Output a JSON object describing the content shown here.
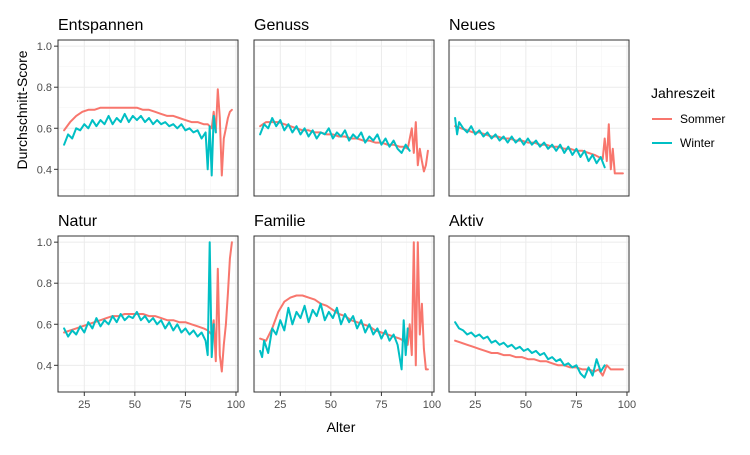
{
  "chart_data": {
    "type": "line",
    "ylabel": "Durchschnitt-Score",
    "xlabel": "Alter",
    "xlim": [
      12,
      101
    ],
    "ylim": [
      0.27,
      1.03
    ],
    "xticks": [
      25,
      50,
      75,
      100
    ],
    "yticks": [
      0.4,
      0.6,
      0.8,
      1.0
    ],
    "ytick_labels": [
      "0.4",
      "0.6",
      "0.8",
      "1.0"
    ],
    "grid": true,
    "legend": {
      "title": "Jahreszeit",
      "position": "right",
      "entries": [
        {
          "label": "Sommer",
          "color": "#F8766D"
        },
        {
          "label": "Winter",
          "color": "#00BFC4"
        }
      ]
    },
    "facets": [
      {
        "title": "Entspannen",
        "series": [
          {
            "name": "Sommer",
            "color": "#F8766D",
            "x": [
              15,
              18,
              21,
              24,
              27,
              30,
              33,
              36,
              39,
              42,
              45,
              48,
              51,
              54,
              57,
              60,
              63,
              66,
              69,
              72,
              75,
              78,
              81,
              84,
              86,
              88,
              89,
              90,
              91,
              92,
              93,
              94,
              95,
              96,
              97,
              98
            ],
            "y": [
              0.59,
              0.63,
              0.66,
              0.68,
              0.69,
              0.69,
              0.7,
              0.7,
              0.7,
              0.7,
              0.7,
              0.7,
              0.7,
              0.69,
              0.69,
              0.68,
              0.67,
              0.66,
              0.66,
              0.65,
              0.64,
              0.63,
              0.63,
              0.62,
              0.62,
              0.6,
              0.68,
              0.58,
              0.79,
              0.65,
              0.37,
              0.55,
              0.6,
              0.65,
              0.68,
              0.69
            ]
          },
          {
            "name": "Winter",
            "color": "#00BFC4",
            "x": [
              15,
              17,
              19,
              21,
              23,
              25,
              27,
              29,
              31,
              33,
              35,
              37,
              39,
              41,
              43,
              45,
              47,
              49,
              51,
              53,
              55,
              57,
              59,
              61,
              63,
              65,
              67,
              69,
              71,
              73,
              75,
              77,
              79,
              81,
              83,
              85,
              86,
              87,
              88,
              89,
              90
            ],
            "y": [
              0.52,
              0.57,
              0.55,
              0.6,
              0.59,
              0.62,
              0.6,
              0.64,
              0.61,
              0.64,
              0.62,
              0.66,
              0.62,
              0.65,
              0.63,
              0.67,
              0.63,
              0.66,
              0.64,
              0.66,
              0.63,
              0.65,
              0.62,
              0.64,
              0.62,
              0.63,
              0.61,
              0.62,
              0.6,
              0.62,
              0.59,
              0.6,
              0.58,
              0.59,
              0.55,
              0.58,
              0.4,
              0.61,
              0.37,
              0.66,
              0.58
            ]
          }
        ]
      },
      {
        "title": "Genuss",
        "series": [
          {
            "name": "Sommer",
            "color": "#F8766D",
            "x": [
              15,
              18,
              21,
              24,
              27,
              30,
              33,
              36,
              39,
              42,
              45,
              48,
              51,
              54,
              57,
              60,
              63,
              66,
              69,
              72,
              75,
              78,
              81,
              84,
              86,
              88,
              90,
              91,
              92,
              93,
              94,
              95,
              96,
              97,
              98
            ],
            "y": [
              0.61,
              0.63,
              0.63,
              0.63,
              0.62,
              0.61,
              0.6,
              0.59,
              0.59,
              0.58,
              0.58,
              0.57,
              0.57,
              0.56,
              0.56,
              0.55,
              0.55,
              0.54,
              0.54,
              0.53,
              0.53,
              0.52,
              0.52,
              0.51,
              0.51,
              0.5,
              0.6,
              0.48,
              0.63,
              0.42,
              0.5,
              0.44,
              0.39,
              0.42,
              0.49
            ]
          },
          {
            "name": "Winter",
            "color": "#00BFC4",
            "x": [
              15,
              17,
              19,
              21,
              23,
              25,
              27,
              29,
              31,
              33,
              35,
              37,
              39,
              41,
              43,
              45,
              47,
              49,
              51,
              53,
              55,
              57,
              59,
              61,
              63,
              65,
              67,
              69,
              71,
              73,
              75,
              77,
              79,
              81,
              83,
              85,
              87,
              89
            ],
            "y": [
              0.57,
              0.62,
              0.6,
              0.65,
              0.61,
              0.64,
              0.59,
              0.62,
              0.58,
              0.61,
              0.57,
              0.6,
              0.56,
              0.59,
              0.55,
              0.58,
              0.57,
              0.6,
              0.55,
              0.58,
              0.56,
              0.59,
              0.54,
              0.57,
              0.55,
              0.58,
              0.53,
              0.56,
              0.54,
              0.57,
              0.52,
              0.55,
              0.51,
              0.54,
              0.5,
              0.48,
              0.52,
              0.49
            ]
          }
        ]
      },
      {
        "title": "Neues",
        "series": [
          {
            "name": "Sommer",
            "color": "#F8766D",
            "x": [
              15,
              18,
              21,
              24,
              27,
              30,
              33,
              36,
              39,
              42,
              45,
              48,
              51,
              54,
              57,
              60,
              63,
              66,
              69,
              72,
              75,
              78,
              81,
              84,
              86,
              88,
              89,
              90,
              91,
              92,
              93,
              94,
              95,
              96,
              97,
              98
            ],
            "y": [
              0.61,
              0.6,
              0.59,
              0.58,
              0.58,
              0.57,
              0.56,
              0.56,
              0.55,
              0.55,
              0.54,
              0.54,
              0.53,
              0.53,
              0.52,
              0.52,
              0.51,
              0.51,
              0.5,
              0.5,
              0.49,
              0.49,
              0.48,
              0.47,
              0.46,
              0.45,
              0.55,
              0.44,
              0.62,
              0.4,
              0.5,
              0.38,
              0.38,
              0.38,
              0.38,
              0.38
            ]
          },
          {
            "name": "Winter",
            "color": "#00BFC4",
            "x": [
              15,
              16,
              17,
              19,
              21,
              23,
              25,
              27,
              29,
              31,
              33,
              35,
              37,
              39,
              41,
              43,
              45,
              47,
              49,
              51,
              53,
              55,
              57,
              59,
              61,
              63,
              65,
              67,
              69,
              71,
              73,
              75,
              77,
              79,
              81,
              83,
              85,
              87,
              89
            ],
            "y": [
              0.65,
              0.57,
              0.63,
              0.6,
              0.58,
              0.61,
              0.57,
              0.59,
              0.56,
              0.58,
              0.55,
              0.57,
              0.54,
              0.56,
              0.53,
              0.56,
              0.53,
              0.55,
              0.52,
              0.55,
              0.52,
              0.54,
              0.51,
              0.53,
              0.5,
              0.52,
              0.49,
              0.52,
              0.48,
              0.51,
              0.47,
              0.5,
              0.46,
              0.49,
              0.44,
              0.47,
              0.43,
              0.46,
              0.41
            ]
          }
        ]
      },
      {
        "title": "Natur",
        "series": [
          {
            "name": "Sommer",
            "color": "#F8766D",
            "x": [
              15,
              18,
              21,
              24,
              27,
              30,
              33,
              36,
              39,
              42,
              45,
              48,
              51,
              54,
              57,
              60,
              63,
              66,
              69,
              72,
              75,
              78,
              81,
              84,
              86,
              88,
              89,
              90,
              91,
              92,
              93,
              94,
              95,
              96,
              97,
              98
            ],
            "y": [
              0.56,
              0.57,
              0.58,
              0.59,
              0.6,
              0.61,
              0.62,
              0.63,
              0.64,
              0.64,
              0.65,
              0.65,
              0.65,
              0.65,
              0.64,
              0.64,
              0.63,
              0.62,
              0.62,
              0.61,
              0.61,
              0.6,
              0.59,
              0.58,
              0.57,
              0.55,
              0.62,
              0.42,
              0.87,
              0.45,
              0.37,
              0.5,
              0.6,
              0.75,
              0.92,
              1.0
            ]
          },
          {
            "name": "Winter",
            "color": "#00BFC4",
            "x": [
              15,
              17,
              19,
              21,
              23,
              25,
              27,
              29,
              31,
              33,
              35,
              37,
              39,
              41,
              43,
              45,
              47,
              49,
              51,
              53,
              55,
              57,
              59,
              61,
              63,
              65,
              67,
              69,
              71,
              73,
              75,
              77,
              79,
              81,
              83,
              85,
              86,
              87,
              88,
              89
            ],
            "y": [
              0.58,
              0.54,
              0.57,
              0.55,
              0.59,
              0.56,
              0.61,
              0.58,
              0.63,
              0.59,
              0.62,
              0.6,
              0.64,
              0.61,
              0.65,
              0.62,
              0.64,
              0.63,
              0.66,
              0.62,
              0.64,
              0.61,
              0.63,
              0.6,
              0.62,
              0.58,
              0.61,
              0.57,
              0.6,
              0.56,
              0.58,
              0.55,
              0.57,
              0.54,
              0.56,
              0.52,
              0.45,
              1.0,
              0.44,
              0.6
            ]
          }
        ]
      },
      {
        "title": "Familie",
        "series": [
          {
            "name": "Sommer",
            "color": "#F8766D",
            "x": [
              15,
              18,
              21,
              24,
              27,
              30,
              33,
              36,
              39,
              42,
              45,
              48,
              51,
              54,
              57,
              60,
              63,
              66,
              69,
              72,
              75,
              78,
              81,
              84,
              86,
              88,
              89,
              90,
              91,
              92,
              93,
              94,
              95,
              96,
              97,
              98
            ],
            "y": [
              0.53,
              0.52,
              0.58,
              0.66,
              0.71,
              0.73,
              0.74,
              0.74,
              0.73,
              0.72,
              0.7,
              0.69,
              0.67,
              0.65,
              0.64,
              0.62,
              0.61,
              0.6,
              0.59,
              0.57,
              0.56,
              0.55,
              0.54,
              0.53,
              0.52,
              0.5,
              0.6,
              0.45,
              1.0,
              0.4,
              1.0,
              0.55,
              0.7,
              0.48,
              0.38,
              0.38
            ]
          },
          {
            "name": "Winter",
            "color": "#00BFC4",
            "x": [
              15,
              16,
              17,
              19,
              21,
              23,
              25,
              27,
              29,
              31,
              33,
              35,
              37,
              39,
              41,
              43,
              45,
              47,
              49,
              51,
              53,
              55,
              57,
              59,
              61,
              63,
              65,
              67,
              69,
              71,
              73,
              75,
              77,
              79,
              81,
              83,
              85,
              86,
              87,
              88
            ],
            "y": [
              0.47,
              0.44,
              0.52,
              0.46,
              0.58,
              0.55,
              0.62,
              0.57,
              0.68,
              0.6,
              0.66,
              0.63,
              0.69,
              0.61,
              0.67,
              0.64,
              0.7,
              0.62,
              0.66,
              0.63,
              0.68,
              0.6,
              0.65,
              0.61,
              0.64,
              0.58,
              0.62,
              0.56,
              0.6,
              0.55,
              0.58,
              0.53,
              0.57,
              0.52,
              0.55,
              0.5,
              0.38,
              0.62,
              0.45,
              0.58
            ]
          }
        ]
      },
      {
        "title": "Aktiv",
        "series": [
          {
            "name": "Sommer",
            "color": "#F8766D",
            "x": [
              15,
              18,
              21,
              24,
              27,
              30,
              33,
              36,
              39,
              42,
              45,
              48,
              51,
              54,
              57,
              60,
              63,
              66,
              69,
              72,
              75,
              78,
              81,
              84,
              86,
              88,
              90,
              92,
              94,
              96,
              98
            ],
            "y": [
              0.52,
              0.51,
              0.5,
              0.49,
              0.48,
              0.47,
              0.46,
              0.46,
              0.45,
              0.45,
              0.44,
              0.44,
              0.43,
              0.43,
              0.42,
              0.42,
              0.41,
              0.4,
              0.4,
              0.39,
              0.39,
              0.38,
              0.38,
              0.37,
              0.38,
              0.35,
              0.4,
              0.38,
              0.38,
              0.38,
              0.38
            ]
          },
          {
            "name": "Winter",
            "color": "#00BFC4",
            "x": [
              15,
              17,
              19,
              21,
              23,
              25,
              27,
              29,
              31,
              33,
              35,
              37,
              39,
              41,
              43,
              45,
              47,
              49,
              51,
              53,
              55,
              57,
              59,
              61,
              63,
              65,
              67,
              69,
              71,
              73,
              75,
              77,
              79,
              81,
              83,
              85,
              87,
              89
            ],
            "y": [
              0.61,
              0.58,
              0.57,
              0.55,
              0.56,
              0.54,
              0.55,
              0.53,
              0.54,
              0.51,
              0.52,
              0.5,
              0.51,
              0.49,
              0.5,
              0.48,
              0.49,
              0.47,
              0.48,
              0.46,
              0.47,
              0.45,
              0.46,
              0.43,
              0.44,
              0.42,
              0.43,
              0.4,
              0.41,
              0.39,
              0.4,
              0.36,
              0.34,
              0.39,
              0.35,
              0.43,
              0.37,
              0.4
            ]
          }
        ]
      }
    ]
  }
}
